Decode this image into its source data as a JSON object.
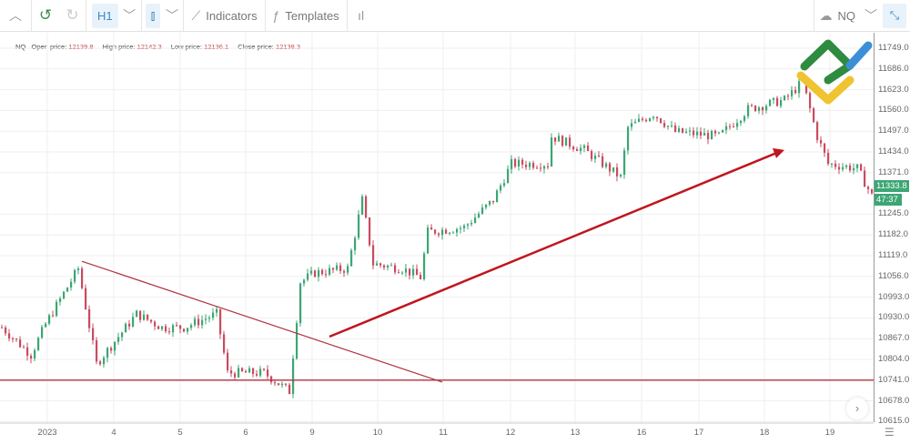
{
  "toolbar": {
    "interval": "H1",
    "indicators": "Indicators",
    "templates": "Templates",
    "symbol": "NQ"
  },
  "info": {
    "symbol": "NQ",
    "open_label": "Open price:",
    "open": "12139.8",
    "high_label": "High price:",
    "high": "12142.3",
    "low_label": "Low price:",
    "low": "12136.1",
    "close_label": "Close price:",
    "close": "12138.3"
  },
  "price_axis": [
    "11749.0",
    "11686.0",
    "11623.0",
    "11560.0",
    "11497.0",
    "11434.0",
    "11371.0",
    "11245.0",
    "11182.0",
    "11119.0",
    "11056.0",
    "10993.0",
    "10930.0",
    "10867.0",
    "10804.0",
    "10741.0",
    "10678.0",
    "10615.0"
  ],
  "time_axis": [
    "2023",
    "4",
    "5",
    "6",
    "9",
    "10",
    "11",
    "12",
    "13",
    "16",
    "17",
    "18",
    "19"
  ],
  "current_price": "11333.8",
  "countdown": "47:37",
  "colors": {
    "up": "#3ca674",
    "down": "#c94b60",
    "drawing": "#b0323c",
    "arrow": "#c0161e"
  },
  "chart_data": {
    "type": "candlestick",
    "ylim": [
      10615,
      11780
    ],
    "close_waypoints": [
      [
        0,
        10901
      ],
      [
        8,
        10818
      ],
      [
        12,
        10911
      ],
      [
        21,
        11080
      ],
      [
        26,
        10790
      ],
      [
        37,
        10942
      ],
      [
        44,
        10901
      ],
      [
        50,
        10901
      ],
      [
        59,
        10942
      ],
      [
        62,
        10763
      ],
      [
        72,
        10763
      ],
      [
        79,
        10707
      ],
      [
        82,
        11039
      ],
      [
        86,
        11067
      ],
      [
        95,
        11080
      ],
      [
        99,
        11288
      ],
      [
        102,
        11094
      ],
      [
        110,
        11080
      ],
      [
        115,
        11053
      ],
      [
        117,
        11191
      ],
      [
        127,
        11205
      ],
      [
        135,
        11288
      ],
      [
        140,
        11398
      ],
      [
        150,
        11398
      ],
      [
        151,
        11481
      ],
      [
        160,
        11440
      ],
      [
        170,
        11357
      ],
      [
        172,
        11508
      ],
      [
        179,
        11550
      ],
      [
        185,
        11495
      ],
      [
        197,
        11481
      ],
      [
        205,
        11564
      ],
      [
        215,
        11592
      ],
      [
        220,
        11647
      ],
      [
        224,
        11481
      ],
      [
        227,
        11398
      ],
      [
        235,
        11384
      ],
      [
        239,
        11301
      ]
    ],
    "horizontal_line": 10741,
    "trendline": [
      [
        22,
        11102
      ],
      [
        121,
        10735
      ]
    ],
    "arrow": [
      [
        90,
        10873
      ],
      [
        215,
        11440
      ]
    ]
  }
}
